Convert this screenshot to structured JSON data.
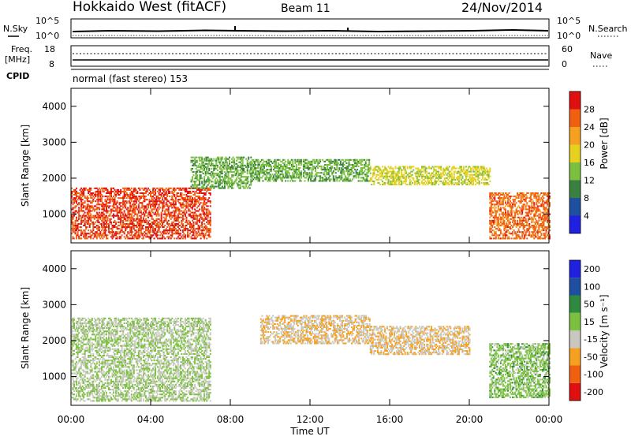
{
  "header": {
    "radar": "Hokkaido West (fitACF)",
    "beam": "Beam 11",
    "date": "24/Nov/2014"
  },
  "noise_panel": {
    "left_label": "N.Sky",
    "right_label": "N.Search",
    "y_ticks": [
      "10^5",
      "10^0"
    ]
  },
  "freq_panel": {
    "left_label": "Freq.",
    "left_unit": "[MHz]",
    "left_ticks": [
      "18",
      "8"
    ],
    "right_label": "Nave",
    "right_ticks": [
      "60",
      "0"
    ]
  },
  "cpid_panel": {
    "label": "CPID",
    "text": "normal (fast stereo) 153"
  },
  "x_axis": {
    "label": "Time UT",
    "ticks": [
      "00:00",
      "04:00",
      "08:00",
      "12:00",
      "16:00",
      "20:00",
      "00:00"
    ]
  },
  "colors": {
    "power": [
      "#2020e0",
      "#1f4fa0",
      "#3a8040",
      "#7cc040",
      "#e8d020",
      "#f5a020",
      "#f06010",
      "#e01010"
    ],
    "velocity": [
      "#e01010",
      "#f06010",
      "#f5a020",
      "#c8c8c0",
      "#7cc040",
      "#2f8a40",
      "#1f4fa0",
      "#2020e0"
    ]
  },
  "chart_data": [
    {
      "type": "heatmap",
      "panel": "power",
      "ylabel": "Slant Range [km]",
      "y_ticks": [
        1000,
        2000,
        3000,
        4000
      ],
      "ylim": [
        200,
        4500
      ],
      "xlim": [
        "00:00",
        "24:00"
      ],
      "colorbar": {
        "label": "Power [dB]",
        "ticks": [
          "4",
          "8",
          "12",
          "16",
          "20",
          "24",
          "28"
        ],
        "range": [
          0,
          30
        ]
      },
      "regions": [
        {
          "t": [
            0,
            7
          ],
          "range_km": [
            300,
            1700
          ],
          "value_db": 26
        },
        {
          "t": [
            6,
            9
          ],
          "range_km": [
            1700,
            2600
          ],
          "value_db": 12
        },
        {
          "t": [
            9,
            15
          ],
          "range_km": [
            1900,
            2500
          ],
          "value_db": 12
        },
        {
          "t": [
            15,
            21
          ],
          "range_km": [
            1800,
            2300
          ],
          "value_db": 16
        },
        {
          "t": [
            21,
            24
          ],
          "range_km": [
            300,
            1600
          ],
          "value_db": 24
        }
      ]
    },
    {
      "type": "heatmap",
      "panel": "velocity",
      "ylabel": "Slant Range [km]",
      "y_ticks": [
        1000,
        2000,
        3000,
        4000
      ],
      "ylim": [
        200,
        4500
      ],
      "xlim": [
        "00:00",
        "24:00"
      ],
      "colorbar": {
        "label": "Velocity [m s⁻¹]",
        "ticks": [
          "-200",
          "-100",
          "-50",
          "-15",
          "15",
          "50",
          "100",
          "200"
        ],
        "range": [
          -250,
          250
        ]
      },
      "regions": [
        {
          "t": [
            0,
            7
          ],
          "range_km": [
            300,
            2600
          ],
          "value_ms": 0
        },
        {
          "t": [
            9.5,
            15
          ],
          "range_km": [
            1900,
            2700
          ],
          "value_ms": -60
        },
        {
          "t": [
            15,
            20
          ],
          "range_km": [
            1600,
            2400
          ],
          "value_ms": -60
        },
        {
          "t": [
            21,
            24
          ],
          "range_km": [
            400,
            1900
          ],
          "value_ms": 30
        }
      ]
    }
  ]
}
